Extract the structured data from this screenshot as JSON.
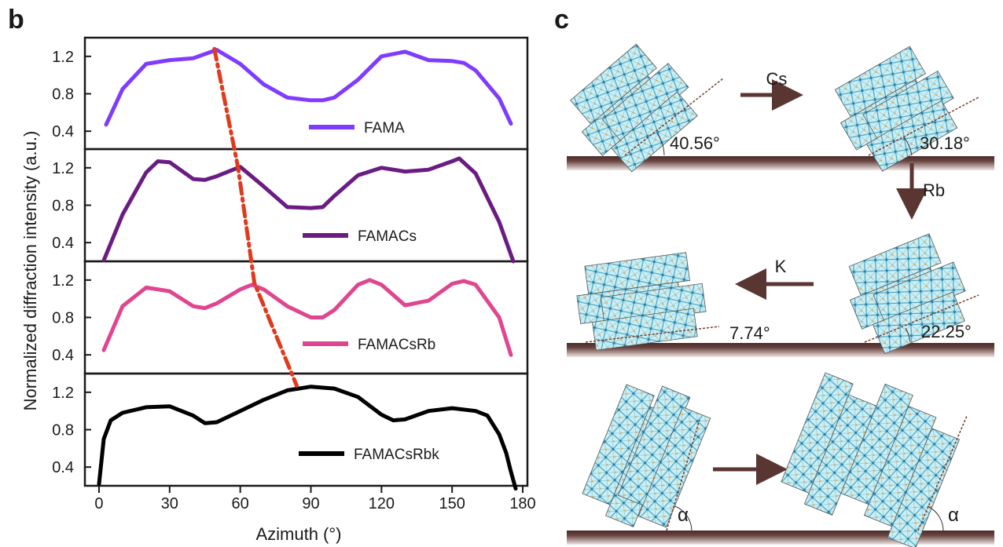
{
  "panel_b": {
    "label": "b",
    "ylabel": "Normalized diffraction intensity (a.u.)",
    "xlabel": "Azimuth (°)",
    "xticks": [
      "0",
      "30",
      "60",
      "90",
      "120",
      "150",
      "180"
    ],
    "yticks": [
      "0.4",
      "0.8",
      "1.2"
    ]
  },
  "panel_c": {
    "label": "c",
    "arrows": {
      "cs": "Cs",
      "rb": "Rb",
      "k": "K"
    },
    "angles": {
      "fama": "40.56°",
      "cs": "30.18°",
      "rb": "22.25°",
      "k": "7.74°",
      "alpha_left": "α",
      "alpha_right": "α"
    }
  },
  "colors": {
    "fama": "#7f3cff",
    "famacs": "#6a1c82",
    "famacsrb": "#e0468f",
    "famacsrbk": "#000000",
    "trend": "#e03a1e",
    "substrate": "#5a3632",
    "arrow": "#5a3632"
  },
  "chart_data": {
    "type": "line",
    "title": "",
    "xlabel": "Azimuth (°)",
    "ylabel": "Normalized diffraction intensity (a.u.)",
    "xlim": [
      -6,
      182
    ],
    "ylim": [
      0.2,
      1.4
    ],
    "layout": "stacked",
    "series": [
      {
        "name": "FAMA",
        "color": "#7f3cff",
        "x": [
          3,
          10,
          20,
          30,
          40,
          50,
          60,
          70,
          80,
          90,
          95,
          100,
          110,
          120,
          130,
          140,
          150,
          155,
          160,
          170,
          175
        ],
        "y": [
          0.47,
          0.85,
          1.12,
          1.16,
          1.18,
          1.27,
          1.12,
          0.9,
          0.76,
          0.73,
          0.73,
          0.76,
          0.95,
          1.2,
          1.25,
          1.16,
          1.15,
          1.13,
          1.05,
          0.75,
          0.48
        ]
      },
      {
        "name": "FAMACs",
        "color": "#6a1c82",
        "x": [
          2,
          10,
          20,
          25,
          30,
          40,
          45,
          50,
          60,
          70,
          80,
          90,
          95,
          100,
          110,
          120,
          130,
          140,
          150,
          153,
          160,
          170,
          176
        ],
        "y": [
          0.21,
          0.7,
          1.15,
          1.27,
          1.26,
          1.08,
          1.07,
          1.11,
          1.21,
          1.0,
          0.78,
          0.77,
          0.78,
          0.9,
          1.12,
          1.2,
          1.16,
          1.18,
          1.27,
          1.3,
          1.14,
          0.62,
          0.2
        ]
      },
      {
        "name": "FAMACsRb",
        "color": "#e0468f",
        "x": [
          2,
          10,
          20,
          30,
          40,
          45,
          50,
          60,
          65,
          70,
          80,
          90,
          95,
          100,
          110,
          115,
          120,
          130,
          140,
          150,
          155,
          160,
          170,
          175
        ],
        "y": [
          0.45,
          0.92,
          1.12,
          1.08,
          0.92,
          0.9,
          0.95,
          1.1,
          1.15,
          1.1,
          0.92,
          0.8,
          0.8,
          0.88,
          1.15,
          1.2,
          1.15,
          0.93,
          0.98,
          1.16,
          1.19,
          1.15,
          0.8,
          0.4
        ]
      },
      {
        "name": "FAMACsRbk",
        "color": "#000000",
        "x": [
          0,
          2,
          5,
          10,
          20,
          30,
          40,
          45,
          50,
          60,
          70,
          80,
          90,
          100,
          110,
          120,
          125,
          130,
          140,
          150,
          160,
          165,
          170,
          173,
          175,
          177
        ],
        "y": [
          0.22,
          0.7,
          0.9,
          0.98,
          1.04,
          1.05,
          0.95,
          0.87,
          0.88,
          1.0,
          1.12,
          1.22,
          1.26,
          1.24,
          1.15,
          0.96,
          0.9,
          0.91,
          1.0,
          1.03,
          1.0,
          0.95,
          0.75,
          0.55,
          0.35,
          0.17
        ]
      }
    ],
    "trend_line": {
      "name": "peak shift",
      "x": [
        49,
        59,
        66,
        84
      ],
      "y": [
        1.28,
        1.21,
        1.17,
        1.27
      ]
    }
  }
}
